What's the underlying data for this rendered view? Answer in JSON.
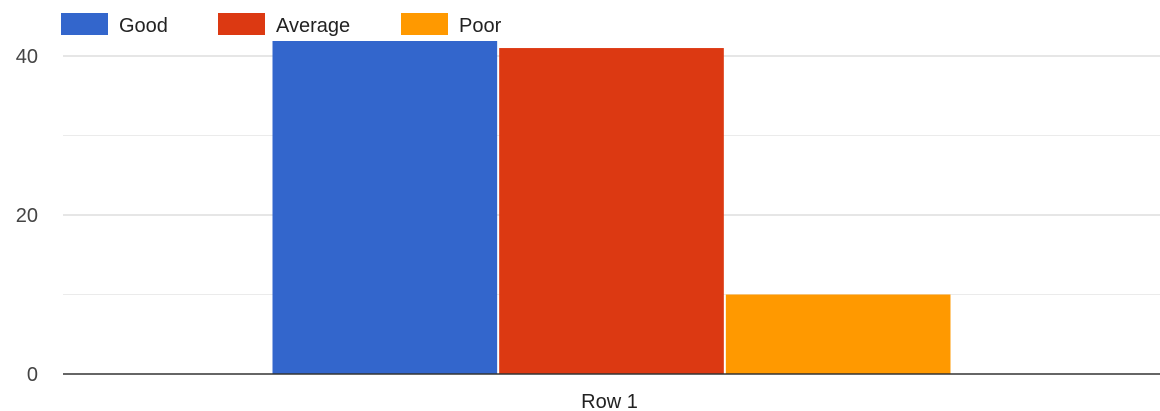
{
  "chart_data": {
    "type": "bar",
    "title": "",
    "xlabel": "",
    "ylabel": "",
    "categories": [
      "Row 1"
    ],
    "series": [
      {
        "name": "Good",
        "color": "#3366cc",
        "values": [
          42
        ]
      },
      {
        "name": "Average",
        "color": "#dc3912",
        "values": [
          41
        ]
      },
      {
        "name": "Poor",
        "color": "#ff9900",
        "values": [
          10
        ]
      }
    ],
    "ylim": [
      0,
      40
    ],
    "y_ticks": [
      0,
      20,
      40
    ],
    "y_ticks_labels": [
      "0",
      "20",
      "40"
    ],
    "minor_gridlines": [
      10,
      30
    ],
    "grid": true,
    "legend_position": "top-left"
  }
}
